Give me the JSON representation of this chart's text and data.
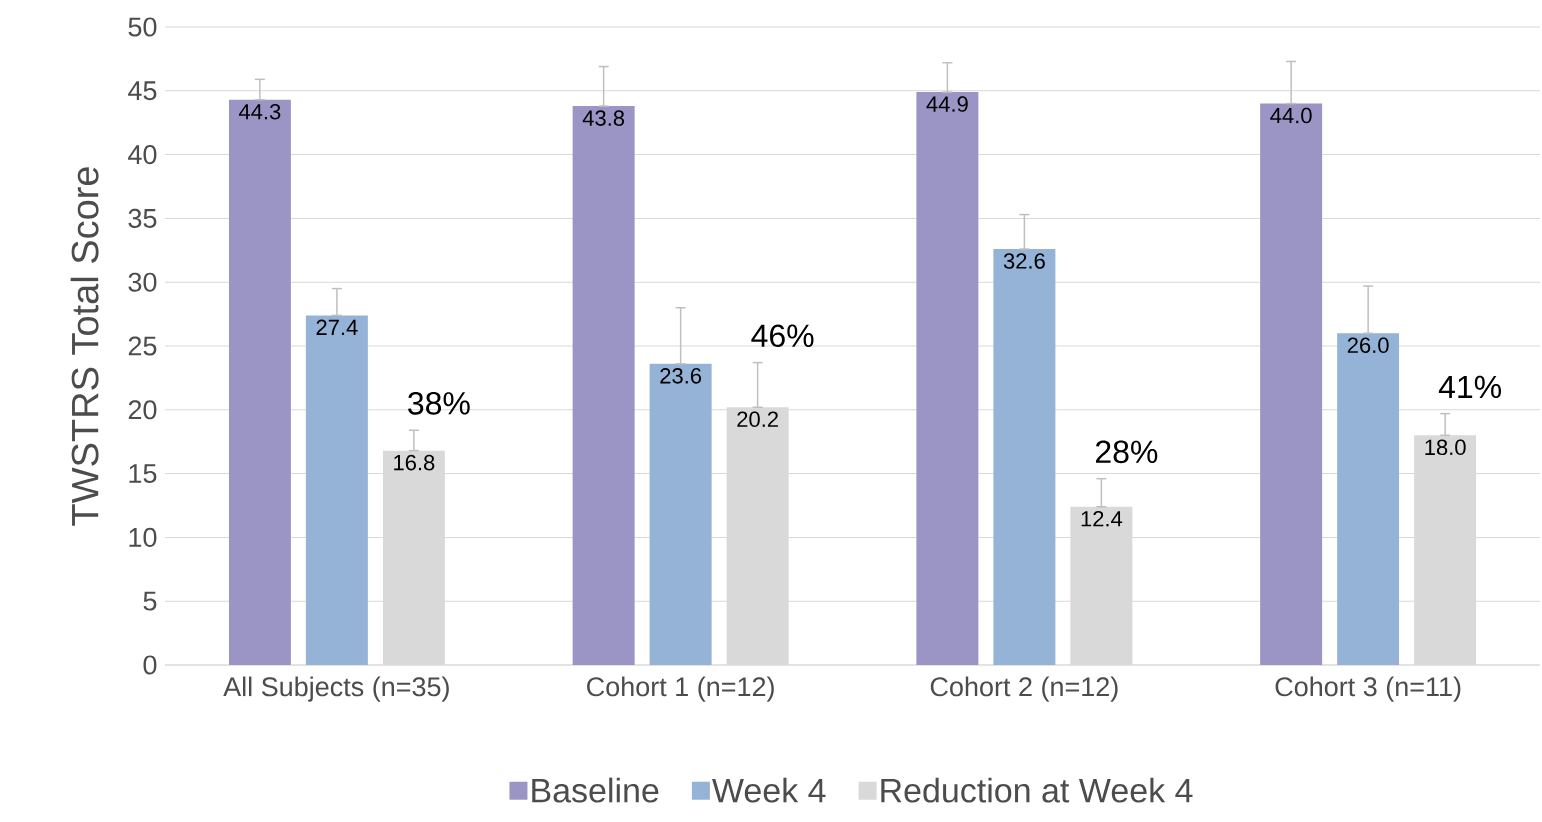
{
  "chart_data": {
    "type": "bar",
    "ylabel": "TWSTRS Total Score",
    "categories": [
      "All Subjects (n=35)",
      "Cohort 1 (n=12)",
      "Cohort 2 (n=12)",
      "Cohort 3 (n=11)"
    ],
    "series": [
      {
        "name": "Baseline",
        "color": "#9b95c6",
        "values": [
          44.3,
          43.8,
          44.9,
          44.0
        ],
        "value_labels": [
          "44.3",
          "43.8",
          "44.9",
          "44.0"
        ],
        "errors": [
          [
            44.3,
            45.9
          ],
          [
            43.8,
            46.9
          ],
          [
            44.9,
            47.2
          ],
          [
            44.0,
            47.3
          ]
        ]
      },
      {
        "name": "Week 4",
        "color": "#95b3d7",
        "values": [
          27.4,
          23.6,
          32.6,
          26.0
        ],
        "value_labels": [
          "27.4",
          "23.6",
          "32.6",
          "26.0"
        ],
        "errors": [
          [
            27.4,
            29.5
          ],
          [
            23.6,
            28.0
          ],
          [
            32.6,
            35.3
          ],
          [
            26.0,
            29.7
          ]
        ]
      },
      {
        "name": "Reduction at Week 4",
        "color": "#d9d9d9",
        "values": [
          16.8,
          20.2,
          12.4,
          18.0
        ],
        "value_labels": [
          "16.8",
          "20.2",
          "12.4",
          "18.0"
        ],
        "errors": [
          [
            16.8,
            18.4
          ],
          [
            20.2,
            23.7
          ],
          [
            12.4,
            14.6
          ],
          [
            18.0,
            19.7
          ]
        ]
      }
    ],
    "annotations": [
      "38%",
      "46%",
      "28%",
      "41%"
    ],
    "ylim": [
      0,
      50
    ],
    "yticks": [
      0,
      5,
      10,
      15,
      20,
      25,
      30,
      35,
      40,
      45,
      50
    ],
    "grid": "y",
    "legend": "bottom"
  }
}
